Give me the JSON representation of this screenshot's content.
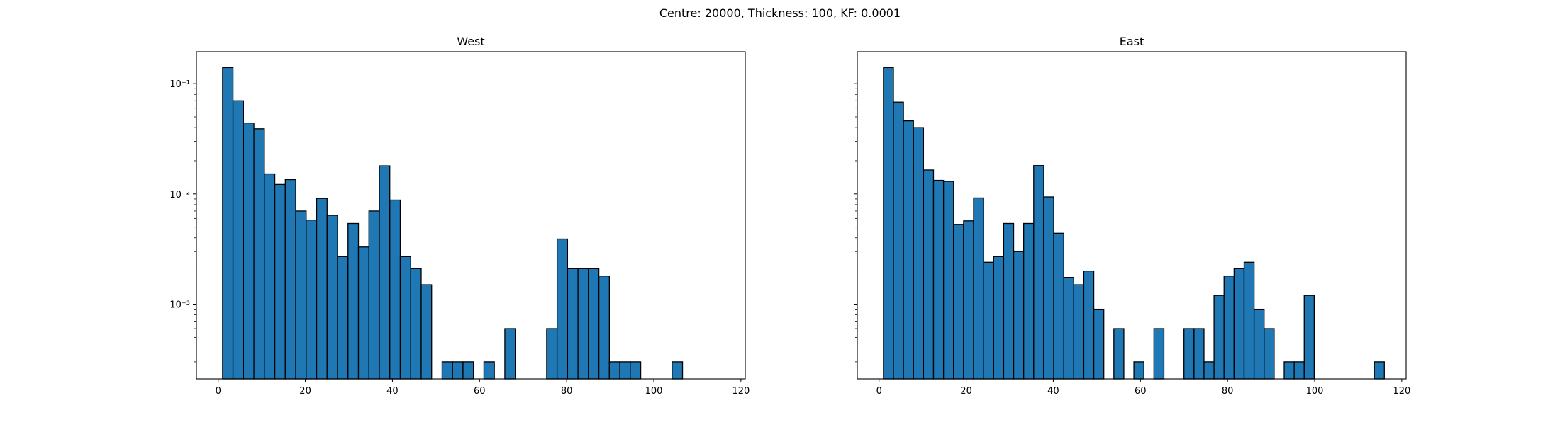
{
  "suptitle": "Centre: 20000, Thickness: 100, KF: 0.0001",
  "colors": {
    "bar_fill": "#1f77b4",
    "bar_edge": "#000000",
    "axes": "#000000",
    "background": "#ffffff"
  },
  "chart_data": [
    {
      "type": "bar",
      "title": "West",
      "xlabel": "",
      "ylabel": "",
      "yscale": "log",
      "xlim": [
        -5,
        121
      ],
      "ylim": [
        0.00021,
        0.195
      ],
      "grid": false,
      "xticks": [
        "0",
        "20",
        "40",
        "60",
        "80",
        "100",
        "120"
      ],
      "yticks": [
        "10⁻³",
        "10⁻²",
        "10⁻¹"
      ],
      "bin_width": 2.4,
      "bin_starts": [
        1.0,
        3.4,
        5.8,
        8.2,
        10.6,
        13.0,
        15.4,
        17.8,
        20.2,
        22.6,
        25.0,
        27.4,
        29.8,
        32.2,
        34.6,
        37.0,
        39.4,
        41.8,
        44.2,
        46.6,
        49.0,
        51.4,
        53.8,
        56.2,
        58.6,
        61.0,
        63.4,
        65.8,
        68.2,
        70.6,
        73.0,
        75.4,
        77.8,
        80.2,
        82.6,
        85.0,
        87.4,
        89.8,
        92.2,
        94.6,
        97.0,
        99.4,
        101.8,
        104.2
      ],
      "values": [
        0.14,
        0.07,
        0.044,
        0.039,
        0.0152,
        0.0122,
        0.0135,
        0.007,
        0.0058,
        0.0091,
        0.0064,
        0.0027,
        0.0054,
        0.0033,
        0.007,
        0.018,
        0.0088,
        0.0027,
        0.0021,
        0.0015,
        0,
        0.0003,
        0.0003,
        0.0003,
        0,
        0.0003,
        0,
        0.0006,
        0,
        0,
        0,
        0.0006,
        0.0039,
        0.0021,
        0.0021,
        0.0021,
        0.0018,
        0.0003,
        0.0003,
        0.0003,
        0,
        0,
        0,
        0.0003
      ]
    },
    {
      "type": "bar",
      "title": "East",
      "xlabel": "",
      "ylabel": "",
      "yscale": "log",
      "xlim": [
        -5,
        121
      ],
      "ylim": [
        0.00021,
        0.195
      ],
      "grid": false,
      "xticks": [
        "0",
        "20",
        "40",
        "60",
        "80",
        "100",
        "120"
      ],
      "bin_width": 2.3,
      "bin_starts": [
        1.0,
        3.3,
        5.6,
        7.9,
        10.2,
        12.5,
        14.8,
        17.1,
        19.4,
        21.7,
        24.0,
        26.3,
        28.6,
        30.9,
        33.2,
        35.5,
        37.8,
        40.1,
        42.4,
        44.7,
        47.0,
        49.3,
        51.6,
        53.9,
        56.2,
        58.5,
        60.8,
        63.1,
        65.4,
        67.7,
        70.0,
        72.3,
        74.6,
        76.9,
        79.2,
        81.5,
        83.8,
        86.1,
        88.4,
        90.7,
        93.0,
        95.3,
        97.6,
        99.9,
        102.2,
        104.5,
        106.8,
        109.1,
        111.4,
        113.7
      ],
      "values": [
        0.14,
        0.068,
        0.046,
        0.04,
        0.0165,
        0.0133,
        0.013,
        0.0053,
        0.0057,
        0.0092,
        0.0024,
        0.0027,
        0.0054,
        0.003,
        0.0054,
        0.0181,
        0.0094,
        0.0044,
        0.00175,
        0.0015,
        0.002,
        0.0009,
        0,
        0.0006,
        0,
        0.0003,
        0,
        0.0006,
        0,
        0,
        0.0006,
        0.0006,
        0.0003,
        0.0012,
        0.0018,
        0.0021,
        0.0024,
        0.0009,
        0.0006,
        0,
        0.0003,
        0.0003,
        0.0012,
        0,
        0,
        0,
        0,
        0,
        0,
        0.0003
      ]
    }
  ]
}
